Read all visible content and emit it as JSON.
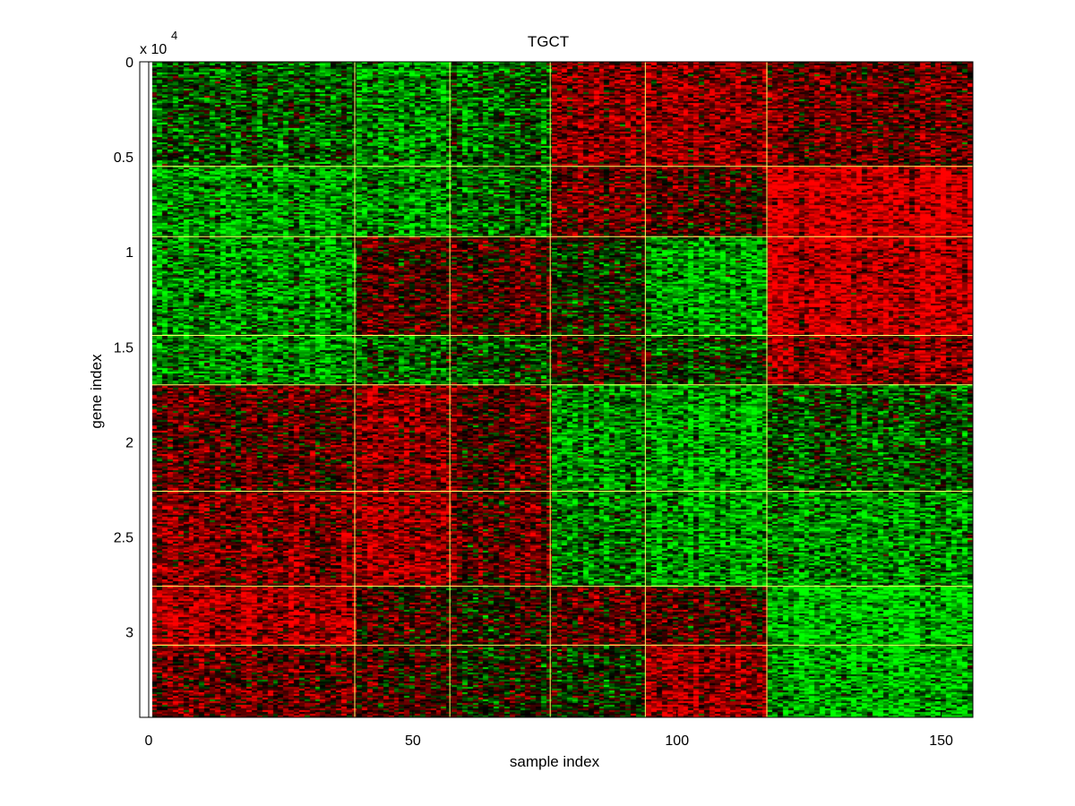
{
  "chart_data": {
    "type": "heatmap",
    "title": "TGCT",
    "xlabel": "sample index",
    "ylabel": "gene index",
    "y_exponent_label": "x 10",
    "y_exponent_power": "4",
    "xlim": [
      0,
      156
    ],
    "ylim": [
      0,
      34500
    ],
    "y_reversed": true,
    "x_ticks": [
      0,
      50,
      100,
      150
    ],
    "x_tick_labels": [
      "0",
      "50",
      "100",
      "150"
    ],
    "y_ticks": [
      0,
      5000,
      10000,
      15000,
      20000,
      25000,
      30000
    ],
    "y_tick_labels": [
      "0",
      "0.5",
      "1",
      "1.5",
      "2",
      "2.5",
      "3"
    ],
    "colormap": {
      "low": "#00ff00",
      "mid": "#000000",
      "high": "#ff0000"
    },
    "separator_color": "#ffff66",
    "sample_cluster_boundaries": [
      0,
      39,
      57,
      76,
      94,
      117,
      156
    ],
    "gene_cluster_boundaries": [
      0,
      5500,
      9200,
      14400,
      17000,
      22600,
      27600,
      30700,
      34500
    ],
    "block_levels": [
      [
        -0.3,
        -0.5,
        -0.3,
        0.5,
        0.55,
        0.35
      ],
      [
        -0.6,
        -0.55,
        -0.35,
        0.35,
        0.2,
        0.8
      ],
      [
        -0.55,
        0.25,
        0.3,
        -0.1,
        -0.6,
        0.75
      ],
      [
        -0.55,
        -0.35,
        -0.2,
        0.1,
        -0.2,
        0.5
      ],
      [
        0.3,
        0.55,
        0.3,
        -0.5,
        -0.6,
        -0.25
      ],
      [
        0.45,
        0.6,
        0.35,
        -0.45,
        -0.6,
        -0.55
      ],
      [
        0.65,
        0.2,
        0.1,
        0.3,
        0.25,
        -0.75
      ],
      [
        0.35,
        0.2,
        0.05,
        -0.1,
        0.6,
        -0.65
      ]
    ]
  },
  "axes": {
    "frame_color": "#000000",
    "background": "#ffffff"
  }
}
